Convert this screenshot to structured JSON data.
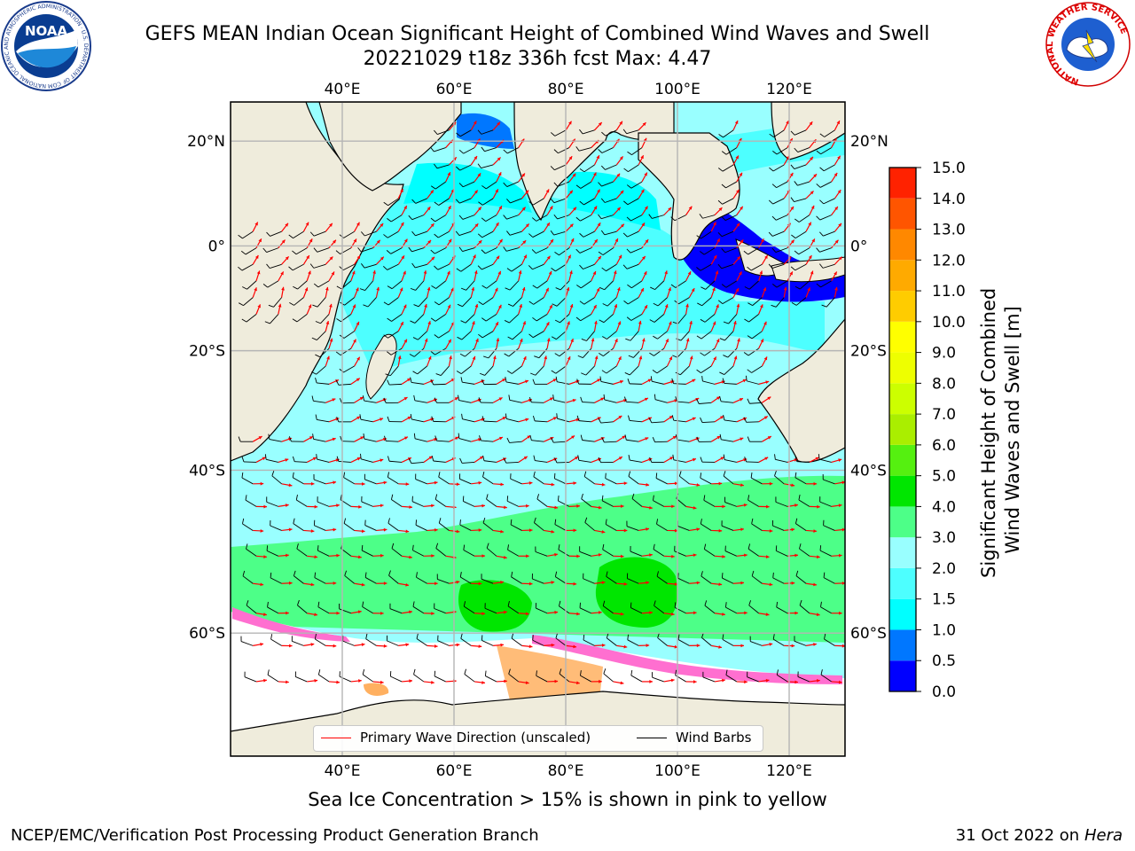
{
  "header": {
    "title_line1": "GEFS MEAN Indian Ocean Significant Height of Combined Wind Waves and Swell",
    "title_line2": "20221029 t18z 336h fcst   Max: 4.47"
  },
  "logos": {
    "noaa": {
      "text": "NOAA",
      "ring_text": "NATIONAL OCEANIC AND ATMOSPHERIC ADMINISTRATION · U.S. DEPARTMENT OF COMMERCE"
    },
    "nws": {
      "ring_text": "NATIONAL WEATHER SERVICE"
    }
  },
  "map": {
    "lon_range": [
      20,
      130
    ],
    "lat_range": [
      -70,
      27
    ],
    "top_lon_ticks": [
      "40°E",
      "60°E",
      "80°E",
      "100°E",
      "120°E"
    ],
    "bottom_lon_ticks": [
      "40°E",
      "60°E",
      "80°E",
      "100°E",
      "120°E"
    ],
    "left_lat_ticks": [
      "20°N",
      "0°",
      "20°S",
      "40°S",
      "60°S"
    ],
    "right_lat_ticks": [
      "20°N",
      "0°",
      "20°S",
      "40°S",
      "60°S"
    ],
    "grid": true,
    "land_color": "#efecdc",
    "ocean_background": "#99ffff",
    "ice_colors": [
      "#ff6fd0",
      "#ff9aa8",
      "#ffb060"
    ],
    "vector_colors": {
      "wave_direction": "#ff0000",
      "wind_barbs": "#000000"
    }
  },
  "legend": {
    "items": [
      {
        "label": "Primary Wave Direction (unscaled)",
        "color": "#ff0000"
      },
      {
        "label": "Wind Barbs",
        "color": "#000000"
      }
    ]
  },
  "colorbar": {
    "label_line1": "Significant Height of Combined",
    "label_line2": "Wind Waves and Swell [m]",
    "boundaries": [
      0.0,
      0.5,
      1.0,
      1.5,
      2.0,
      3.0,
      4.0,
      5.0,
      6.0,
      7.0,
      8.0,
      9.0,
      10.0,
      11.0,
      12.0,
      13.0,
      14.0,
      15.0
    ],
    "tick_labels": [
      "0.0",
      "0.5",
      "1.0",
      "1.5",
      "2.0",
      "3.0",
      "4.0",
      "5.0",
      "6.0",
      "7.0",
      "8.0",
      "9.0",
      "10.0",
      "11.0",
      "12.0",
      "13.0",
      "14.0",
      "15.0"
    ],
    "colors": [
      "#0000ff",
      "#0077ff",
      "#00ffff",
      "#4dffff",
      "#99ffff",
      "#4dff88",
      "#00e600",
      "#55f010",
      "#aaee00",
      "#ccff00",
      "#eeff00",
      "#ffff00",
      "#ffcc00",
      "#ffaa00",
      "#ff8800",
      "#ff5500",
      "#ff2200"
    ]
  },
  "caption": "Sea Ice Concentration > 15% is shown in pink to yellow",
  "footer": {
    "left": "NCEP/EMC/Verification Post Processing Product Generation Branch",
    "right_prefix": "31 Oct 2022 on ",
    "right_host": "Hera"
  }
}
